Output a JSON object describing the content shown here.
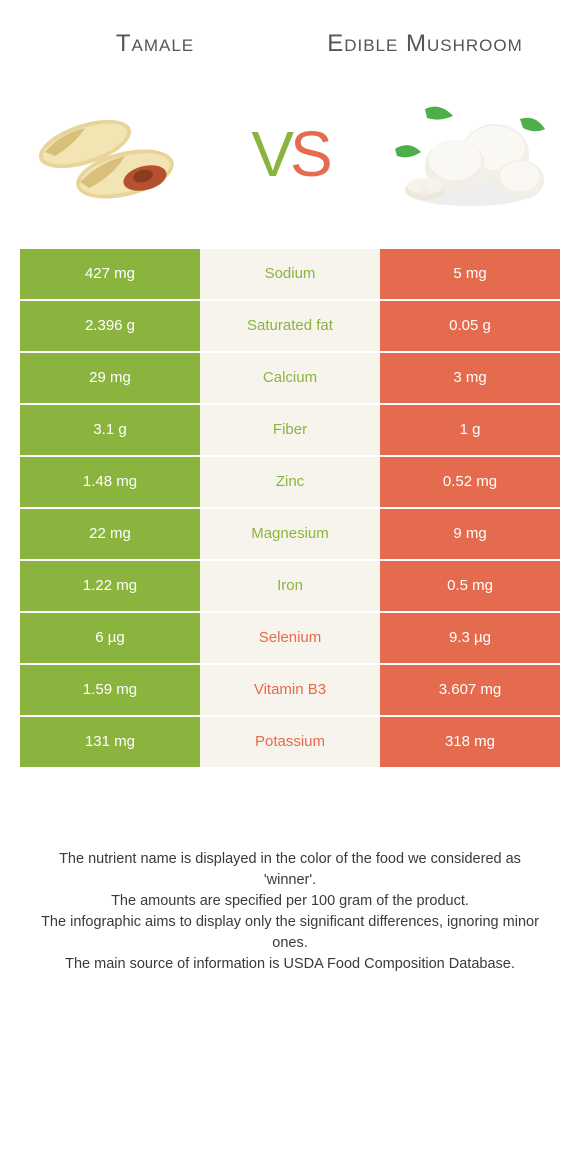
{
  "header": {
    "left": "Tamale",
    "right": "Edible Mushroom"
  },
  "vs": {
    "v": "V",
    "s": "S"
  },
  "colors": {
    "left": "#8bb43f",
    "right": "#e56b4e",
    "mid_bg": "#f7f4ed",
    "vs_v": "#8bb43f",
    "vs_s": "#e56b4e"
  },
  "rows": [
    {
      "left": "427 mg",
      "label": "Sodium",
      "right": "5 mg",
      "winner": "left"
    },
    {
      "left": "2.396 g",
      "label": "Saturated fat",
      "right": "0.05 g",
      "winner": "left"
    },
    {
      "left": "29 mg",
      "label": "Calcium",
      "right": "3 mg",
      "winner": "left"
    },
    {
      "left": "3.1 g",
      "label": "Fiber",
      "right": "1 g",
      "winner": "left"
    },
    {
      "left": "1.48 mg",
      "label": "Zinc",
      "right": "0.52 mg",
      "winner": "left"
    },
    {
      "left": "22 mg",
      "label": "Magnesium",
      "right": "9 mg",
      "winner": "left"
    },
    {
      "left": "1.22 mg",
      "label": "Iron",
      "right": "0.5 mg",
      "winner": "left"
    },
    {
      "left": "6 µg",
      "label": "Selenium",
      "right": "9.3 µg",
      "winner": "right"
    },
    {
      "left": "1.59 mg",
      "label": "Vitamin B3",
      "right": "3.607 mg",
      "winner": "right"
    },
    {
      "left": "131 mg",
      "label": "Potassium",
      "right": "318 mg",
      "winner": "right"
    }
  ],
  "footer": {
    "l1": "The nutrient name is displayed in the color of the food we considered as 'winner'.",
    "l2": "The amounts are specified per 100 gram of the product.",
    "l3": "The infographic aims to display only the significant differences, ignoring minor ones.",
    "l4": "The main source of information is USDA Food Composition Database."
  }
}
